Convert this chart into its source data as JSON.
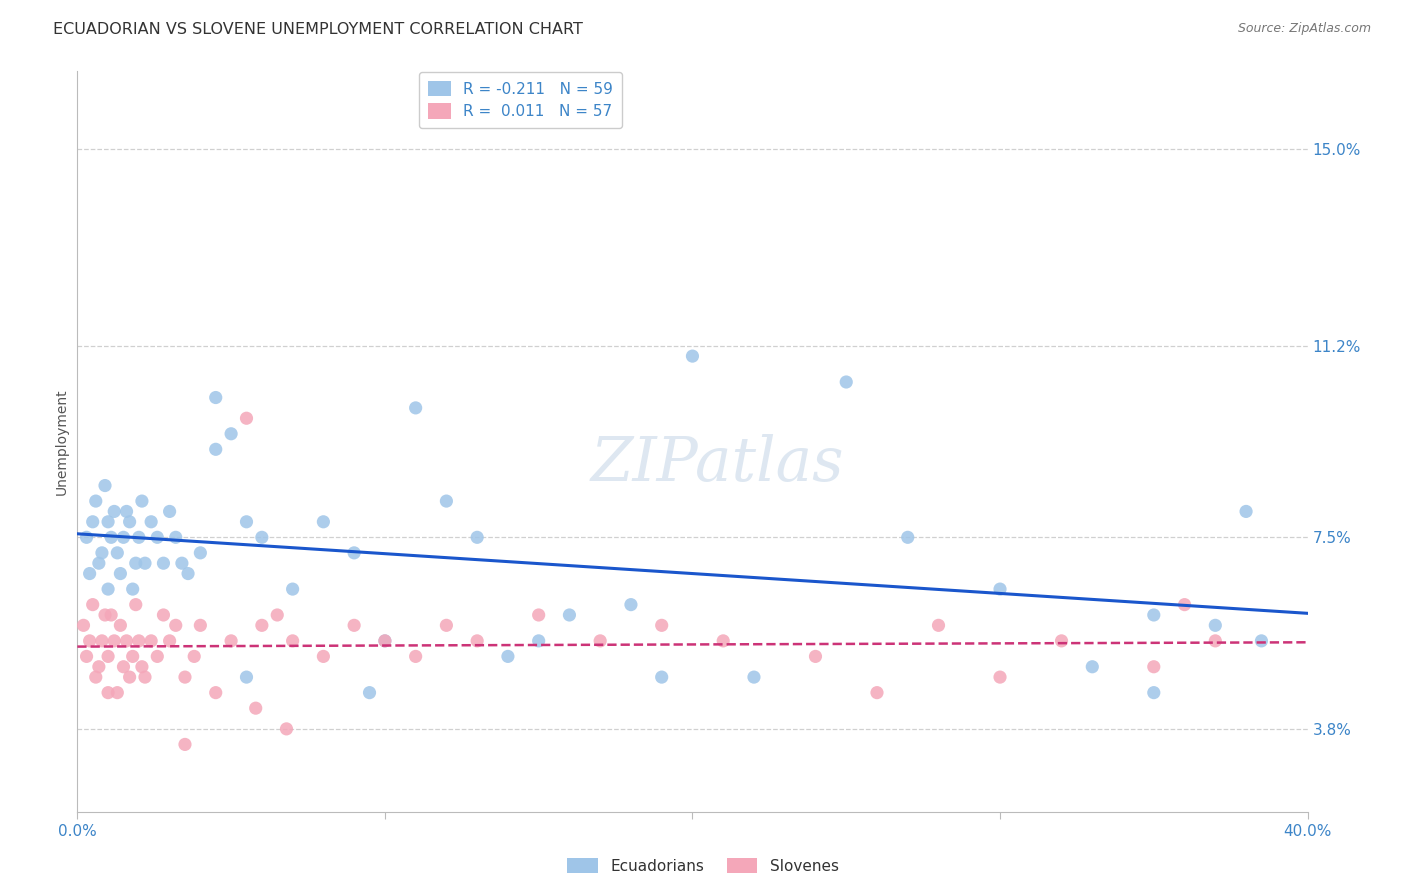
{
  "title": "ECUADORIAN VS SLOVENE UNEMPLOYMENT CORRELATION CHART",
  "source": "Source: ZipAtlas.com",
  "ylabel": "Unemployment",
  "ytick_values": [
    3.8,
    7.5,
    11.2,
    15.0
  ],
  "xlim": [
    0.0,
    40.0
  ],
  "ylim": [
    2.2,
    16.5
  ],
  "ecuadorian_R": -0.211,
  "ecuadorian_N": 59,
  "slovene_R": 0.011,
  "slovene_N": 57,
  "ecuadorian_color": "#9fc5e8",
  "slovene_color": "#f4a7b9",
  "trend_blue": "#1a56cc",
  "trend_pink": "#cc3377",
  "background": "#ffffff",
  "ecuadorian_x": [
    0.3,
    0.4,
    0.5,
    0.6,
    0.7,
    0.8,
    0.9,
    1.0,
    1.0,
    1.1,
    1.2,
    1.3,
    1.4,
    1.5,
    1.6,
    1.7,
    1.8,
    1.9,
    2.0,
    2.1,
    2.2,
    2.4,
    2.6,
    2.8,
    3.0,
    3.2,
    3.4,
    3.6,
    4.0,
    4.5,
    5.0,
    5.5,
    6.0,
    7.0,
    8.0,
    9.0,
    10.0,
    11.0,
    12.0,
    13.0,
    14.0,
    15.0,
    16.0,
    18.0,
    20.0,
    22.0,
    25.0,
    27.0,
    30.0,
    33.0,
    35.0,
    37.0,
    38.0,
    5.5,
    4.5,
    9.5,
    19.0,
    35.0,
    38.5
  ],
  "ecuadorian_y": [
    7.5,
    6.8,
    7.8,
    8.2,
    7.0,
    7.2,
    8.5,
    7.8,
    6.5,
    7.5,
    8.0,
    7.2,
    6.8,
    7.5,
    8.0,
    7.8,
    6.5,
    7.0,
    7.5,
    8.2,
    7.0,
    7.8,
    7.5,
    7.0,
    8.0,
    7.5,
    7.0,
    6.8,
    7.2,
    10.2,
    9.5,
    7.8,
    7.5,
    6.5,
    7.8,
    7.2,
    5.5,
    10.0,
    8.2,
    7.5,
    5.2,
    5.5,
    6.0,
    6.2,
    11.0,
    4.8,
    10.5,
    7.5,
    6.5,
    5.0,
    4.5,
    5.8,
    8.0,
    4.8,
    9.2,
    4.5,
    4.8,
    6.0,
    5.5
  ],
  "slovene_x": [
    0.2,
    0.3,
    0.4,
    0.5,
    0.6,
    0.7,
    0.8,
    0.9,
    1.0,
    1.0,
    1.1,
    1.2,
    1.3,
    1.4,
    1.5,
    1.6,
    1.7,
    1.8,
    1.9,
    2.0,
    2.1,
    2.2,
    2.4,
    2.6,
    2.8,
    3.0,
    3.2,
    3.5,
    3.8,
    4.0,
    4.5,
    5.0,
    5.5,
    6.0,
    6.5,
    7.0,
    8.0,
    9.0,
    10.0,
    11.0,
    12.0,
    13.0,
    15.0,
    17.0,
    19.0,
    21.0,
    24.0,
    26.0,
    28.0,
    30.0,
    32.0,
    35.0,
    37.0,
    5.8,
    3.5,
    6.8,
    36.0
  ],
  "slovene_y": [
    5.8,
    5.2,
    5.5,
    6.2,
    4.8,
    5.0,
    5.5,
    6.0,
    5.2,
    4.5,
    6.0,
    5.5,
    4.5,
    5.8,
    5.0,
    5.5,
    4.8,
    5.2,
    6.2,
    5.5,
    5.0,
    4.8,
    5.5,
    5.2,
    6.0,
    5.5,
    5.8,
    4.8,
    5.2,
    5.8,
    4.5,
    5.5,
    9.8,
    5.8,
    6.0,
    5.5,
    5.2,
    5.8,
    5.5,
    5.2,
    5.8,
    5.5,
    6.0,
    5.5,
    5.8,
    5.5,
    5.2,
    4.5,
    5.8,
    4.8,
    5.5,
    5.0,
    5.5,
    4.2,
    3.5,
    3.8,
    6.2
  ]
}
